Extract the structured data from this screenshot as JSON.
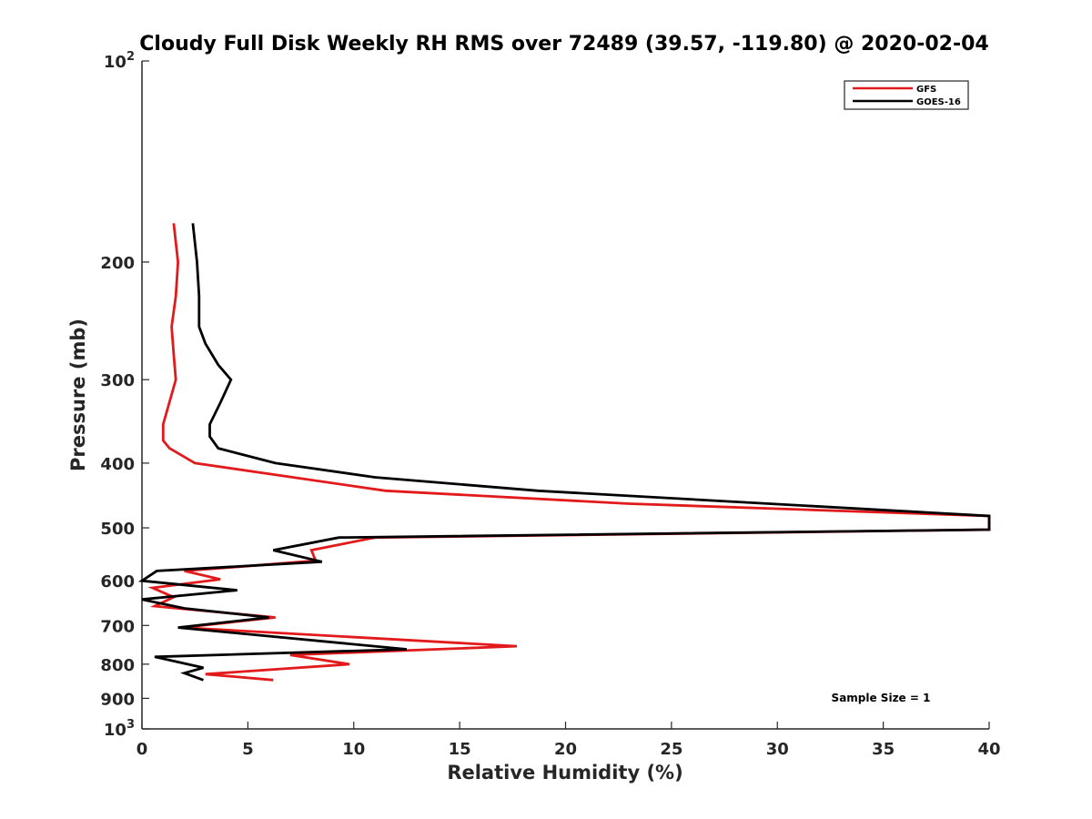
{
  "chart_data": {
    "type": "line",
    "title": "Cloudy Full Disk Weekly RH RMS over 72489 (39.57, -119.80) @ 2020-02-04",
    "xlabel": "Relative Humidity (%)",
    "ylabel": "Pressure (mb)",
    "xlim": [
      0,
      40
    ],
    "ylim": [
      100,
      1000
    ],
    "y_scale": "log",
    "y_reversed": true,
    "x_ticks": [
      "0",
      "5",
      "10",
      "15",
      "20",
      "25",
      "30",
      "35",
      "40"
    ],
    "y_ticks": [
      {
        "value": 100,
        "base": "10",
        "exp": "2"
      },
      {
        "value": 200,
        "label": "200"
      },
      {
        "value": 300,
        "label": "300"
      },
      {
        "value": 400,
        "label": "400"
      },
      {
        "value": 500,
        "label": "500"
      },
      {
        "value": 600,
        "label": "600"
      },
      {
        "value": 700,
        "label": "700"
      },
      {
        "value": 800,
        "label": "800"
      },
      {
        "value": 900,
        "label": "900"
      },
      {
        "value": 1000,
        "base": "10",
        "exp": "3"
      }
    ],
    "grid": false,
    "legend_position": "top-right",
    "series": [
      {
        "name": "GFS",
        "color": "#e31a1c",
        "points": [
          [
            1.5,
            175
          ],
          [
            1.7,
            200
          ],
          [
            1.6,
            225
          ],
          [
            1.4,
            250
          ],
          [
            1.5,
            275
          ],
          [
            1.6,
            300
          ],
          [
            1.0,
            350
          ],
          [
            1.0,
            370
          ],
          [
            1.3,
            380
          ],
          [
            2.5,
            400
          ],
          [
            11.5,
            440
          ],
          [
            23,
            460
          ],
          [
            40,
            480
          ],
          [
            40,
            503
          ],
          [
            11,
            517
          ],
          [
            8,
            540
          ],
          [
            8.2,
            560
          ],
          [
            2,
            580
          ],
          [
            3.7,
            597
          ],
          [
            0.5,
            615
          ],
          [
            1.5,
            635
          ],
          [
            0.6,
            655
          ],
          [
            6.3,
            681
          ],
          [
            1.9,
            705
          ],
          [
            17.7,
            752
          ],
          [
            7.0,
            775
          ],
          [
            9.8,
            800
          ],
          [
            3.0,
            828
          ],
          [
            6.2,
            845
          ]
        ]
      },
      {
        "name": "GOES-16",
        "color": "#000000",
        "points": [
          [
            2.4,
            175
          ],
          [
            2.6,
            200
          ],
          [
            2.7,
            225
          ],
          [
            2.7,
            250
          ],
          [
            3.0,
            265
          ],
          [
            3.6,
            285
          ],
          [
            4.2,
            300
          ],
          [
            3.7,
            325
          ],
          [
            3.2,
            350
          ],
          [
            3.2,
            365
          ],
          [
            3.6,
            380
          ],
          [
            6.3,
            400
          ],
          [
            11,
            420
          ],
          [
            18.7,
            440
          ],
          [
            40,
            480
          ],
          [
            40,
            503
          ],
          [
            9.3,
            517
          ],
          [
            6.2,
            540
          ],
          [
            8.5,
            562
          ],
          [
            0.7,
            580
          ],
          [
            0,
            600
          ],
          [
            4.5,
            620
          ],
          [
            0,
            640
          ],
          [
            2,
            660
          ],
          [
            6.0,
            681
          ],
          [
            1.7,
            705
          ],
          [
            12.5,
            760
          ],
          [
            0.6,
            780
          ],
          [
            2.9,
            810
          ],
          [
            2.0,
            825
          ],
          [
            2.9,
            845
          ]
        ]
      }
    ],
    "annotations": [
      "Sample Size = 1"
    ]
  }
}
